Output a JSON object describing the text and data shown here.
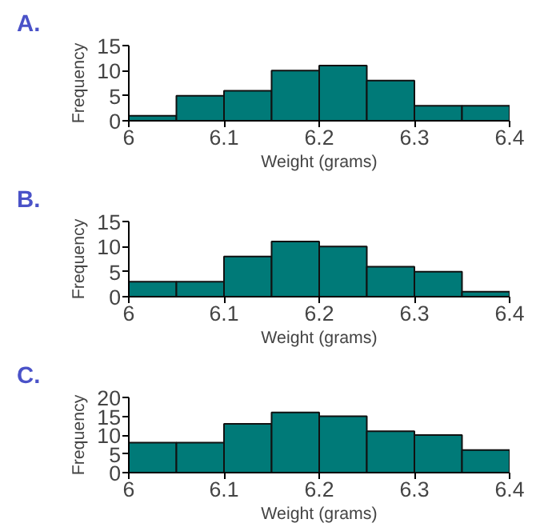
{
  "chart_data": [
    {
      "type": "histogram",
      "title": "A.",
      "xlabel": "Weight (grams)",
      "ylabel": "Frequency",
      "bins": [
        6.0,
        6.05,
        6.1,
        6.15,
        6.2,
        6.25,
        6.3,
        6.35,
        6.4
      ],
      "values": [
        1,
        5,
        6,
        10,
        11,
        8,
        3,
        3
      ],
      "color": "#007a78",
      "xlim": [
        6.0,
        6.4
      ],
      "xticks": [
        6,
        6.1,
        6.2,
        6.3,
        6.4
      ],
      "ylim": [
        0,
        15
      ],
      "yticks": [
        0,
        5,
        10,
        15
      ],
      "grid": false
    },
    {
      "type": "histogram",
      "title": "B.",
      "xlabel": "Weight (grams)",
      "ylabel": "Frequency",
      "bins": [
        6.0,
        6.05,
        6.1,
        6.15,
        6.2,
        6.25,
        6.3,
        6.35,
        6.4
      ],
      "values": [
        3,
        3,
        8,
        11,
        10,
        6,
        5,
        1
      ],
      "color": "#007a78",
      "xlim": [
        6.0,
        6.4
      ],
      "xticks": [
        6,
        6.1,
        6.2,
        6.3,
        6.4
      ],
      "ylim": [
        0,
        15
      ],
      "yticks": [
        0,
        5,
        10,
        15
      ],
      "grid": false
    },
    {
      "type": "histogram",
      "title": "C.",
      "xlabel": "Weight (grams)",
      "ylabel": "Frequency",
      "bins": [
        6.0,
        6.05,
        6.1,
        6.15,
        6.2,
        6.25,
        6.3,
        6.35,
        6.4
      ],
      "values": [
        8,
        8,
        13,
        16,
        15,
        11,
        10,
        6
      ],
      "color": "#007a78",
      "xlim": [
        6.0,
        6.4
      ],
      "xticks": [
        6,
        6.1,
        6.2,
        6.3,
        6.4
      ],
      "ylim": [
        0,
        20
      ],
      "yticks": [
        0,
        5,
        10,
        15,
        20
      ],
      "grid": false
    }
  ]
}
